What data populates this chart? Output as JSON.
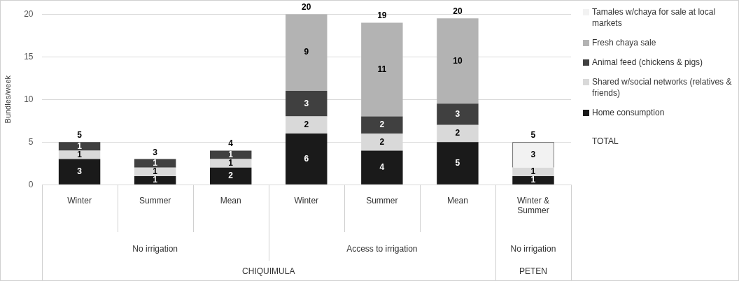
{
  "chart_data": {
    "type": "bar",
    "stacked": true,
    "ylabel": "Bundles/week",
    "categories": [
      "Winter",
      "Summer",
      "Mean",
      "Winter",
      "Summer",
      "Mean",
      "Winter & Summer"
    ],
    "series": [
      {
        "name": "Home consumption",
        "color": "#1a1a1a",
        "values": [
          3,
          1,
          2,
          6,
          4,
          5,
          1
        ]
      },
      {
        "name": "Shared w/social networks (relatives & friends)",
        "color": "#d9d9d9",
        "values": [
          1,
          1,
          1,
          2,
          2,
          2,
          1
        ]
      },
      {
        "name": "Animal feed (chickens & pigs)",
        "color": "#404040",
        "values": [
          1,
          1,
          1,
          3,
          2,
          2.5,
          null
        ],
        "value_labels": [
          "1",
          "1",
          "1",
          "3",
          "2",
          "3",
          null
        ]
      },
      {
        "name": "Fresh chaya sale",
        "color": "#b3b3b3",
        "values": [
          null,
          null,
          null,
          9,
          11,
          10,
          null
        ]
      },
      {
        "name": "Tamales w/chaya for sale at local markets",
        "color": "#f2f2f2",
        "values": [
          null,
          null,
          null,
          null,
          null,
          null,
          3
        ]
      }
    ],
    "data_labels": true,
    "totals": [
      "5",
      "3",
      "4",
      "20",
      "19",
      "20",
      "5"
    ],
    "ylim": [
      0,
      20
    ],
    "yticks": [
      0,
      5,
      10,
      15,
      20
    ],
    "grid": "y",
    "legend": "right",
    "annotations": [
      "No irrigation",
      "Access to irrigation",
      "No irrigation",
      "CHIQUIMULA",
      "PETEN",
      "TOTAL"
    ]
  }
}
